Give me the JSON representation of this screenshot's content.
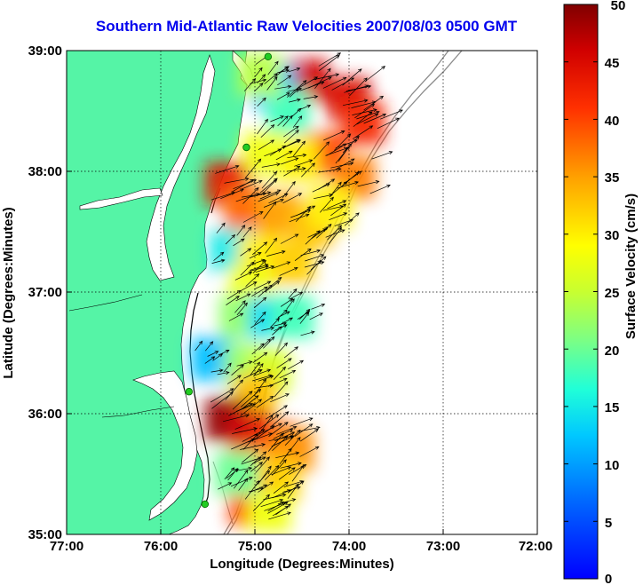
{
  "title": "Southern Mid-Atlantic Raw Velocities 2007/08/03 0500 GMT",
  "x_axis": {
    "label": "Longitude (Degrees:Minutes)",
    "ticks": [
      "77:00",
      "76:00",
      "75:00",
      "74:00",
      "73:00",
      "72:00"
    ]
  },
  "y_axis": {
    "label": "Latitude (Degrees:Minutes)",
    "ticks": [
      "39:00",
      "38:00",
      "37:00",
      "36:00",
      "35:00"
    ]
  },
  "colorbar": {
    "label": "Surface Velocity (cm/s)",
    "ticks": [
      "50",
      "45",
      "40",
      "35",
      "30",
      "25",
      "20",
      "15",
      "10",
      "5",
      "0"
    ],
    "min": 0,
    "max": 50,
    "colormap": "jet"
  },
  "colors": {
    "land": "#55f4a6",
    "ocean": "#ffffff",
    "title": "#0000ee",
    "arrows": "#000000",
    "stations": "#22cc22"
  },
  "extent": {
    "lon": [
      -77,
      -72
    ],
    "lat": [
      35,
      39
    ]
  },
  "stations": [
    {
      "lon": -74.86,
      "lat": 38.95
    },
    {
      "lon": -75.09,
      "lat": 38.2
    },
    {
      "lon": -75.7,
      "lat": 36.18
    },
    {
      "lon": -75.53,
      "lat": 35.25
    }
  ],
  "velocity_patches": [
    {
      "lon": -74.45,
      "lat": 38.75,
      "speed": 46
    },
    {
      "lon": -74.0,
      "lat": 38.6,
      "speed": 45
    },
    {
      "lon": -73.85,
      "lat": 38.4,
      "speed": 42
    },
    {
      "lon": -74.8,
      "lat": 38.7,
      "speed": 12
    },
    {
      "lon": -74.65,
      "lat": 38.5,
      "speed": 18
    },
    {
      "lon": -74.95,
      "lat": 38.8,
      "speed": 24
    },
    {
      "lon": -74.25,
      "lat": 38.15,
      "speed": 40
    },
    {
      "lon": -73.95,
      "lat": 37.95,
      "speed": 37
    },
    {
      "lon": -74.55,
      "lat": 38.1,
      "speed": 30
    },
    {
      "lon": -74.9,
      "lat": 38.15,
      "speed": 28
    },
    {
      "lon": -75.3,
      "lat": 37.9,
      "speed": 44
    },
    {
      "lon": -75.1,
      "lat": 37.7,
      "speed": 38
    },
    {
      "lon": -74.75,
      "lat": 37.65,
      "speed": 35
    },
    {
      "lon": -74.4,
      "lat": 37.55,
      "speed": 33
    },
    {
      "lon": -74.2,
      "lat": 37.7,
      "speed": 30
    },
    {
      "lon": -75.25,
      "lat": 37.35,
      "speed": 15
    },
    {
      "lon": -74.95,
      "lat": 37.3,
      "speed": 30
    },
    {
      "lon": -74.6,
      "lat": 37.25,
      "speed": 32
    },
    {
      "lon": -75.05,
      "lat": 37.05,
      "speed": 28
    },
    {
      "lon": -75.15,
      "lat": 36.8,
      "speed": 22
    },
    {
      "lon": -74.85,
      "lat": 36.8,
      "speed": 14
    },
    {
      "lon": -74.6,
      "lat": 36.8,
      "speed": 18
    },
    {
      "lon": -75.45,
      "lat": 36.45,
      "speed": 12
    },
    {
      "lon": -75.1,
      "lat": 36.4,
      "speed": 22
    },
    {
      "lon": -74.85,
      "lat": 36.35,
      "speed": 26
    },
    {
      "lon": -75.0,
      "lat": 36.15,
      "speed": 33
    },
    {
      "lon": -75.3,
      "lat": 35.95,
      "speed": 49
    },
    {
      "lon": -75.05,
      "lat": 35.85,
      "speed": 46
    },
    {
      "lon": -74.8,
      "lat": 35.75,
      "speed": 42
    },
    {
      "lon": -74.6,
      "lat": 35.7,
      "speed": 36
    },
    {
      "lon": -75.0,
      "lat": 35.55,
      "speed": 35
    },
    {
      "lon": -74.75,
      "lat": 35.45,
      "speed": 32
    },
    {
      "lon": -75.05,
      "lat": 35.25,
      "speed": 40
    },
    {
      "lon": -74.85,
      "lat": 35.2,
      "speed": 28
    },
    {
      "lon": -75.2,
      "lat": 35.5,
      "speed": 20
    }
  ]
}
